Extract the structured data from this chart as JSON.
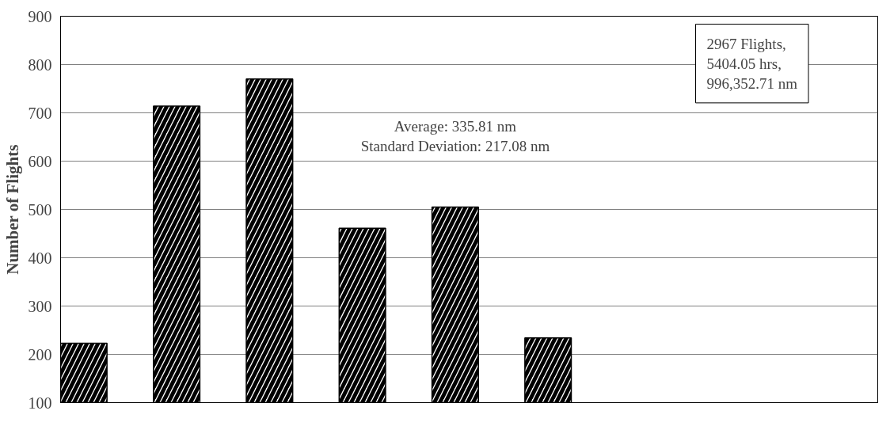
{
  "chart_data": {
    "type": "bar",
    "ylabel": "Number of Flights",
    "categories": [
      null,
      null,
      null,
      null,
      null,
      null,
      null,
      null,
      null
    ],
    "values": [
      223,
      714,
      770,
      461,
      505,
      234,
      null,
      null,
      null
    ],
    "color": "#000000",
    "ylim": [
      100,
      900
    ],
    "yticks": [
      100,
      200,
      300,
      400,
      500,
      600,
      700,
      800,
      900
    ],
    "grid": "y",
    "annotations": [
      "2967 Flights,\n5404.05 hrs,\n996,352.71 nm",
      "Average: 335.81 nm\nStandard Deviation: 217.08 nm"
    ]
  }
}
